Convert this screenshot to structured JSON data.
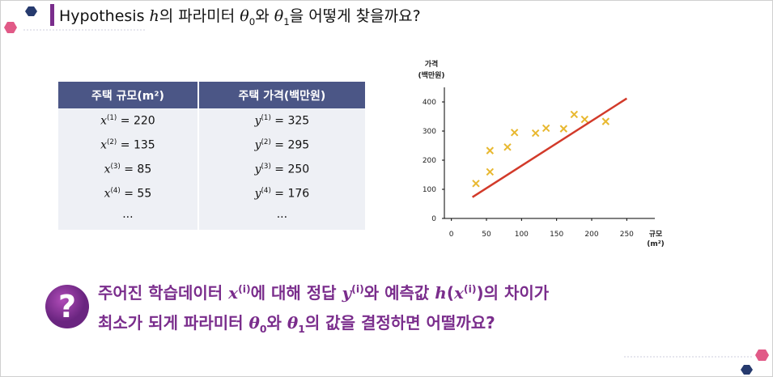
{
  "header": {
    "title": [
      "Hypothesis ",
      "h",
      "의 파라미터 ",
      "θ",
      "0",
      "와 ",
      "θ",
      "1",
      "을 어떻게 찾을까요?"
    ]
  },
  "table": {
    "columns": [
      "주택 규모(m²)",
      "주택 가격(백만원)"
    ],
    "rows": [
      [
        [
          "x",
          "(1)",
          " = 220"
        ],
        [
          "y",
          "(1)",
          " = 325"
        ]
      ],
      [
        [
          "x",
          "(2)",
          " = 135"
        ],
        [
          "y",
          "(2)",
          " = 295"
        ]
      ],
      [
        [
          "x",
          "(3)",
          " = 85"
        ],
        [
          "y",
          "(3)",
          " = 250"
        ]
      ],
      [
        [
          "x",
          "(4)",
          " = 55"
        ],
        [
          "y",
          "(4)",
          " = 176"
        ]
      ],
      [
        [
          "···"
        ],
        [
          "···"
        ]
      ]
    ]
  },
  "chart_data": {
    "type": "scatter",
    "ylabel": [
      "가격",
      "(백만원)"
    ],
    "xlabel": [
      "규모",
      "(m²)"
    ],
    "xlim": [
      -10,
      290
    ],
    "ylim": [
      0,
      450
    ],
    "xticks": [
      0,
      50,
      100,
      150,
      200,
      250
    ],
    "yticks": [
      0,
      100,
      200,
      300,
      400
    ],
    "series": [
      {
        "type": "scatter",
        "color": "#e8b830",
        "x": [
          35,
          55,
          55,
          80,
          90,
          120,
          135,
          160,
          175,
          190,
          220
        ],
        "values": [
          120,
          160,
          233,
          245,
          295,
          293,
          310,
          308,
          357,
          340,
          333
        ]
      },
      {
        "type": "line",
        "color": "#d23a2a",
        "x": [
          30,
          250
        ],
        "values": [
          73,
          412
        ]
      }
    ]
  },
  "question": {
    "icon": "?",
    "line1": [
      "주어진 학습데이터 ",
      "x",
      "(i)",
      "에 대해 정답 ",
      "y",
      "(i)",
      "와 예측값 ",
      "h",
      "(",
      "x",
      "(i)",
      ")",
      "의 차이가"
    ],
    "line2": [
      "최소가 되게 파라미터 ",
      "θ",
      "0",
      "와 ",
      "θ",
      "1",
      "의 값을 결정하면 어떨까요?"
    ]
  }
}
